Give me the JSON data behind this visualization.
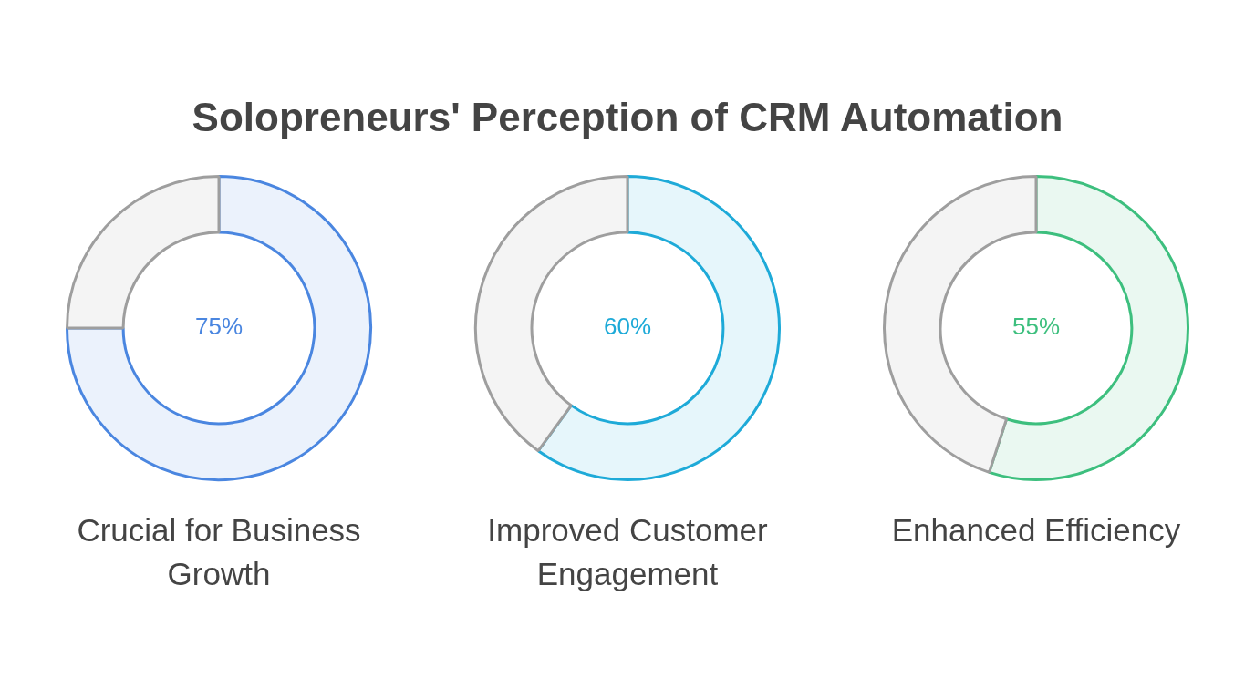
{
  "chart_data": [
    {
      "type": "donut",
      "title": "Solopreneurs' Perception of CRM Automation",
      "xlabel": "Crucial for Business Growth",
      "categories": [
        null,
        null
      ],
      "values": [
        75,
        25
      ],
      "colors": [
        "#4a86e0",
        "#9e9e9e"
      ],
      "value_labels": [
        "75%",
        null
      ]
    },
    {
      "type": "donut",
      "xlabel": "Improved Customer Engagement",
      "categories": [
        null,
        null
      ],
      "values": [
        60,
        40
      ],
      "colors": [
        "#1eaad8",
        "#9e9e9e"
      ],
      "value_labels": [
        "60%",
        null
      ]
    },
    {
      "type": "donut",
      "xlabel": "Enhanced Efficiency",
      "categories": [
        null,
        null
      ],
      "values": [
        55,
        45
      ],
      "colors": [
        "#3dbf7e",
        "#9e9e9e"
      ],
      "value_labels": [
        "55%",
        null
      ]
    }
  ]
}
